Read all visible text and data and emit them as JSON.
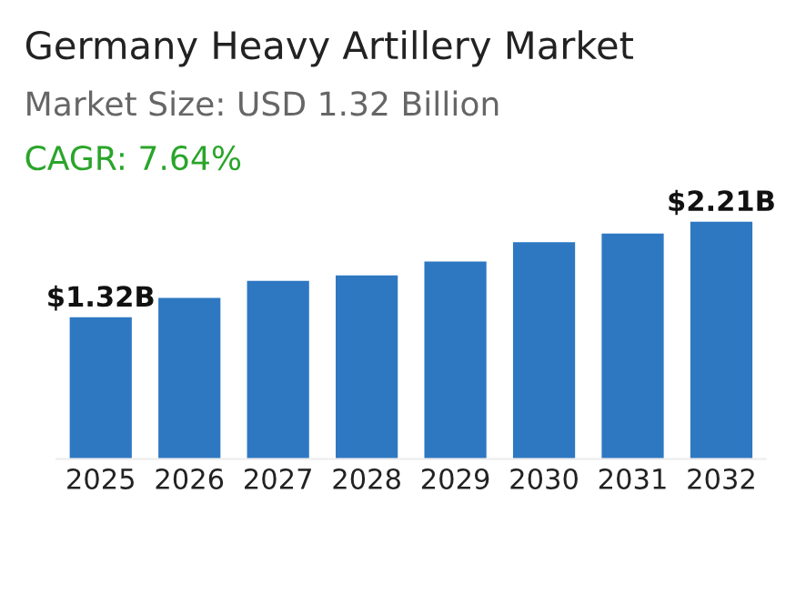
{
  "chart_data": {
    "type": "bar",
    "title": "Germany Heavy Artillery Market",
    "subtitle": "Market Size: USD 1.32 Billion",
    "annotations": [
      "CAGR: 7.64%"
    ],
    "categories": [
      "2025",
      "2026",
      "2027",
      "2028",
      "2029",
      "2030",
      "2031",
      "2032"
    ],
    "values": [
      1.32,
      1.5,
      1.66,
      1.71,
      1.84,
      2.02,
      2.1,
      2.21
    ],
    "value_labels": [
      "$1.32B",
      null,
      null,
      null,
      null,
      null,
      null,
      "$2.21B"
    ],
    "color": "#2e78c2",
    "grid": false,
    "legend": false
  }
}
